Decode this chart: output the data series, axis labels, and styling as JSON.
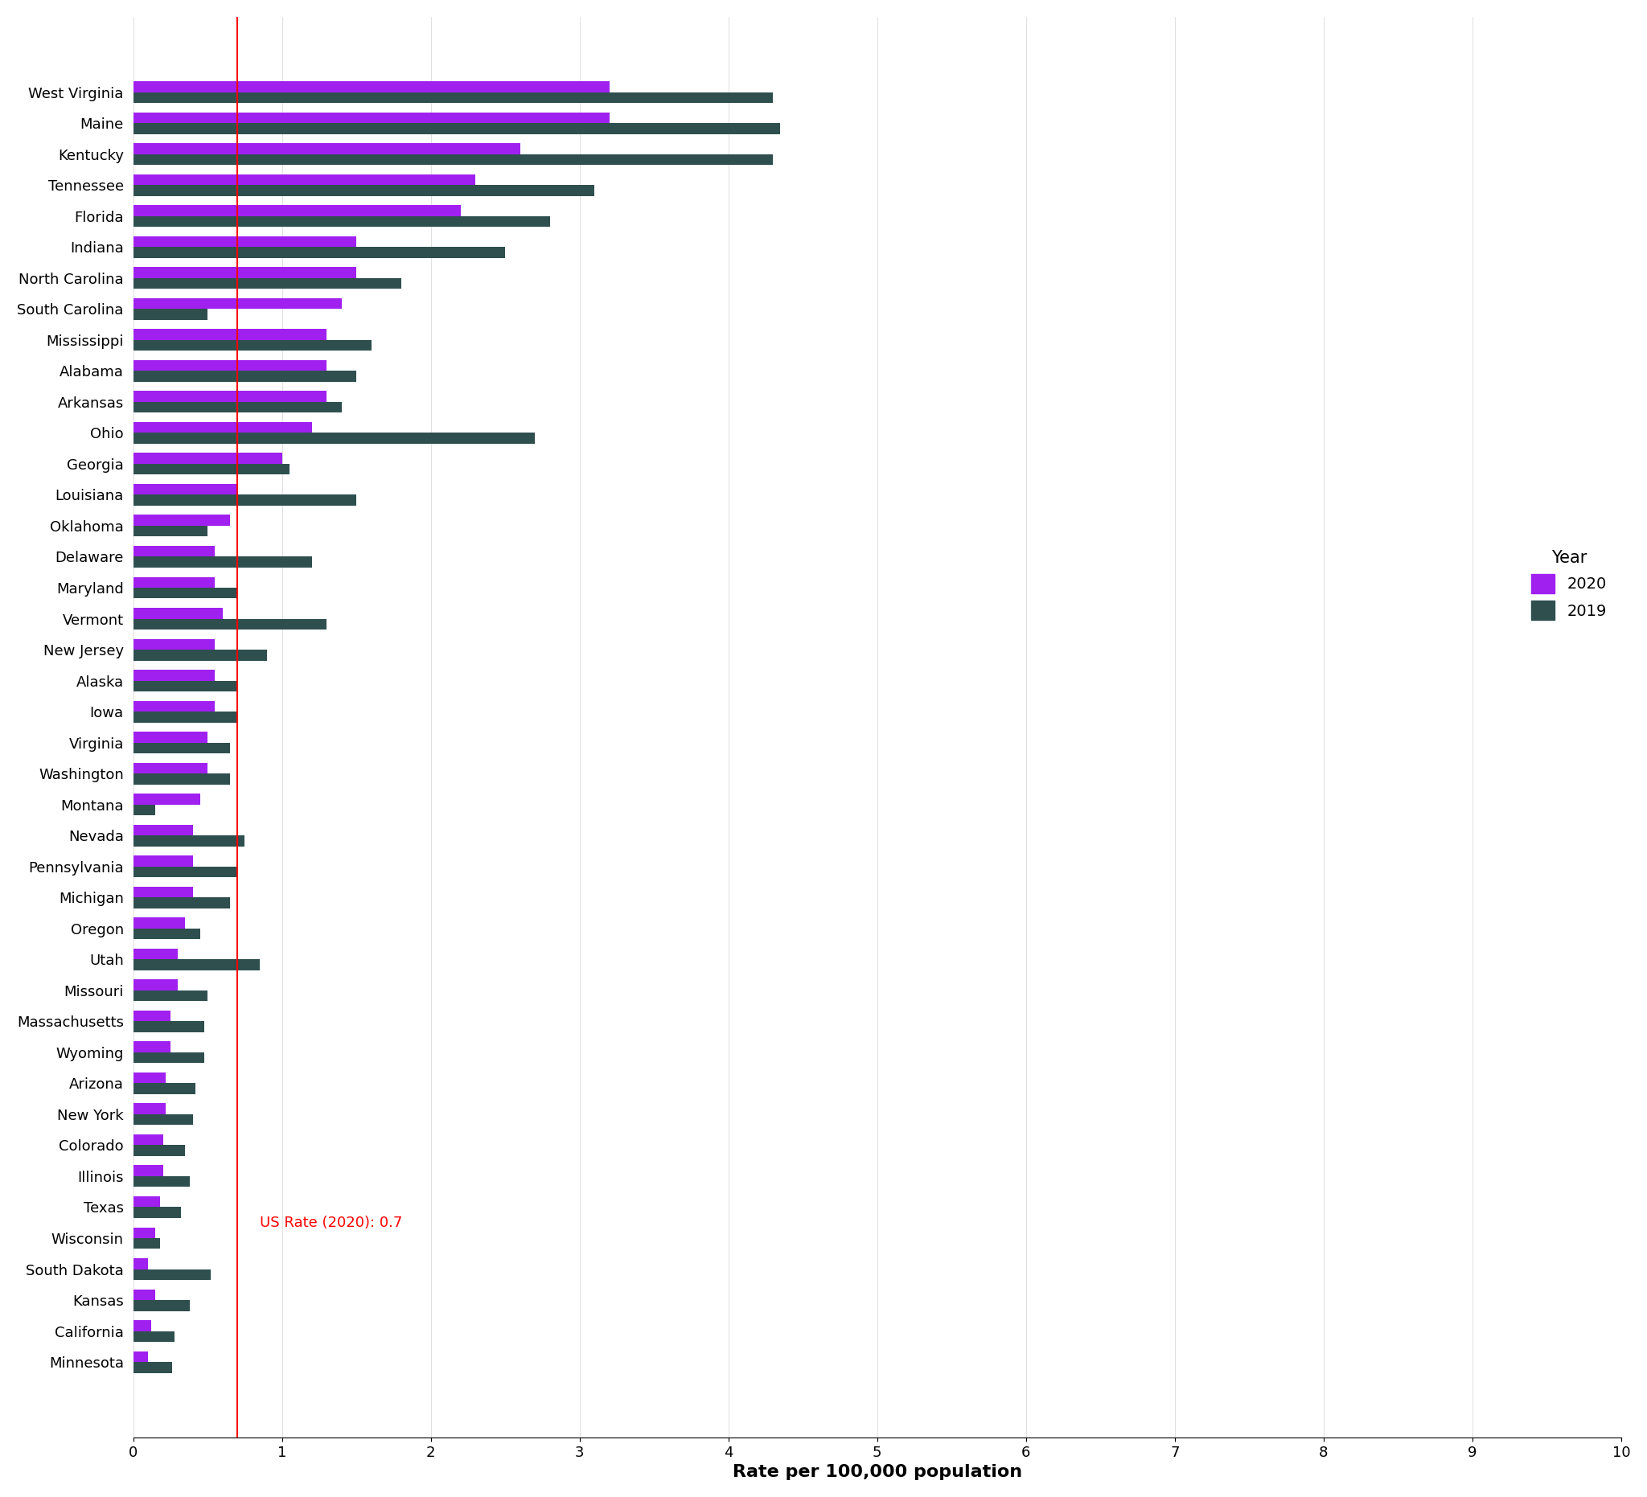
{
  "states": [
    "West Virginia",
    "Maine",
    "Kentucky",
    "Tennessee",
    "Florida",
    "Indiana",
    "North Carolina",
    "South Carolina",
    "Mississippi",
    "Alabama",
    "Arkansas",
    "Ohio",
    "Georgia",
    "Louisiana",
    "Oklahoma",
    "Delaware",
    "Maryland",
    "Vermont",
    "New Jersey",
    "Alaska",
    "Iowa",
    "Virginia",
    "Washington",
    "Montana",
    "Nevada",
    "Pennsylvania",
    "Michigan",
    "Oregon",
    "Utah",
    "Missouri",
    "Massachusetts",
    "Wyoming",
    "Arizona",
    "New York",
    "Colorado",
    "Illinois",
    "Texas",
    "Wisconsin",
    "South Dakota",
    "Kansas",
    "California",
    "Minnesota"
  ],
  "values_2020": [
    3.2,
    3.2,
    2.6,
    2.3,
    2.2,
    1.5,
    1.5,
    1.4,
    1.3,
    1.3,
    1.3,
    1.2,
    1.0,
    0.7,
    0.65,
    0.55,
    0.55,
    0.6,
    0.55,
    0.55,
    0.55,
    0.5,
    0.5,
    0.45,
    0.4,
    0.4,
    0.4,
    0.35,
    0.3,
    0.3,
    0.25,
    0.25,
    0.22,
    0.22,
    0.2,
    0.2,
    0.18,
    0.15,
    0.1,
    0.15,
    0.12,
    0.1
  ],
  "values_2019": [
    4.3,
    4.35,
    4.3,
    3.1,
    2.8,
    2.5,
    1.8,
    0.5,
    1.6,
    1.5,
    1.4,
    2.7,
    1.05,
    1.5,
    0.5,
    1.2,
    0.7,
    1.3,
    0.9,
    0.7,
    0.7,
    0.65,
    0.65,
    0.15,
    0.75,
    0.7,
    0.65,
    0.45,
    0.85,
    0.5,
    0.48,
    0.48,
    0.42,
    0.4,
    0.35,
    0.38,
    0.32,
    0.18,
    0.52,
    0.38,
    0.28,
    0.26
  ],
  "color_2020": "#a020f0",
  "color_2019": "#2f4f4f",
  "us_rate_2020": 0.7,
  "us_rate_label": "US Rate (2020): 0.7",
  "xlabel": "Rate per 100,000 population",
  "xlim": [
    0,
    10
  ],
  "xticks": [
    0,
    1,
    2,
    3,
    4,
    5,
    6,
    7,
    8,
    9,
    10
  ],
  "legend_title": "Year",
  "legend_labels": [
    "2020",
    "2019"
  ],
  "background_color": "#ffffff"
}
